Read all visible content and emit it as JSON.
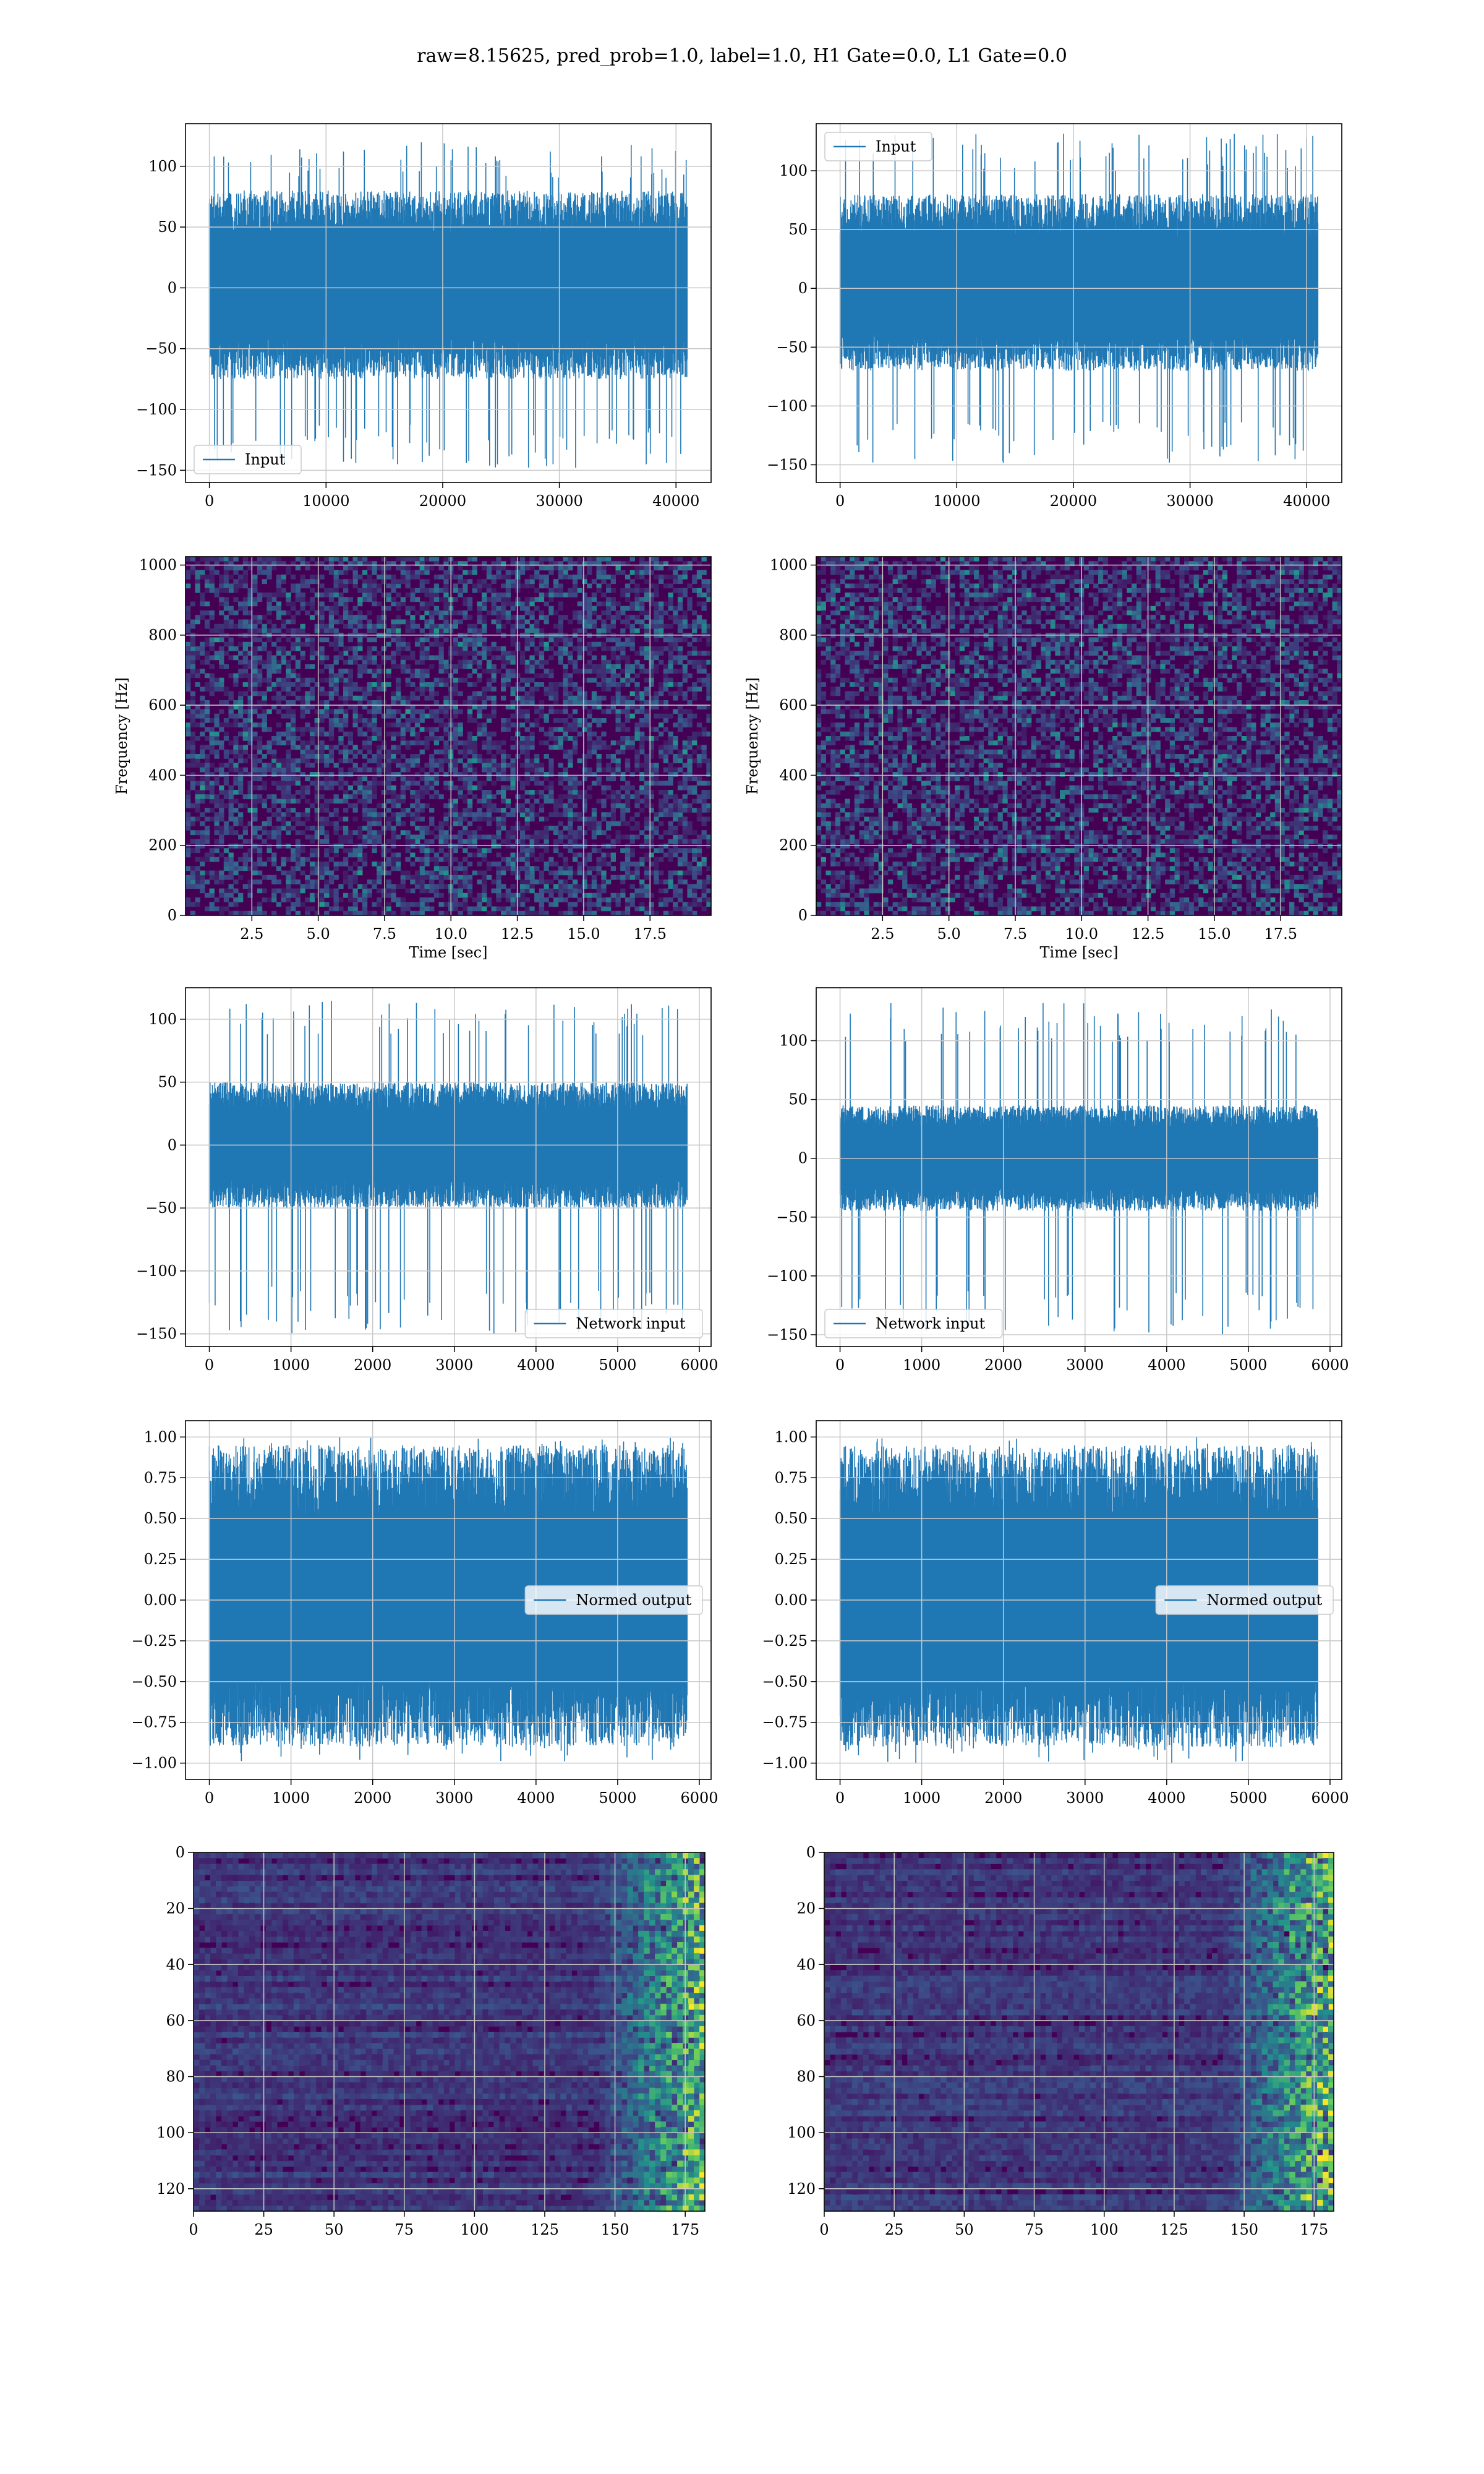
{
  "figure": {
    "title": "raw=8.15625, pred_prob=1.0, label=1.0, H1 Gate=0.0, L1 Gate=0.0"
  },
  "colors": {
    "series": "#1f77b4",
    "grid": "#c8c8c8",
    "viridis_low": "#440154",
    "viridis_mid": "#21918c",
    "viridis_high": "#fde725"
  },
  "chart_data": [
    {
      "id": "h1-input",
      "type": "line",
      "legend": "Input",
      "legend_position": "lower-left",
      "xlim": [
        -2048,
        43008
      ],
      "ylim": [
        -160,
        135
      ],
      "xticks": [
        0,
        10000,
        20000,
        30000,
        40000
      ],
      "yticks": [
        -150,
        -100,
        -50,
        0,
        50,
        100
      ],
      "x_range": [
        0,
        40959
      ],
      "envelope": [
        -75,
        80
      ],
      "peaks": [
        -150,
        120
      ],
      "grid": true,
      "xlabel": "",
      "ylabel": ""
    },
    {
      "id": "l1-input",
      "type": "line",
      "legend": "Input",
      "legend_position": "upper-left",
      "xlim": [
        -2048,
        43008
      ],
      "ylim": [
        -165,
        140
      ],
      "xticks": [
        0,
        10000,
        20000,
        30000,
        40000
      ],
      "yticks": [
        -150,
        -100,
        -50,
        0,
        50,
        100
      ],
      "x_range": [
        0,
        40959
      ],
      "envelope": [
        -70,
        80
      ],
      "peaks": [
        -150,
        132
      ],
      "grid": true,
      "xlabel": "",
      "ylabel": ""
    },
    {
      "id": "h1-spectrogram",
      "type": "heatmap",
      "xlim": [
        0,
        19.8
      ],
      "ylim": [
        0,
        1024
      ],
      "xticks": [
        2.5,
        5.0,
        7.5,
        10.0,
        12.5,
        15.0,
        17.5
      ],
      "xtick_labels": [
        "2.5",
        "5.0",
        "7.5",
        "10.0",
        "12.5",
        "15.0",
        "17.5"
      ],
      "yticks": [
        0,
        200,
        400,
        600,
        800,
        1000
      ],
      "xlabel": "Time [sec]",
      "ylabel": "Frequency [Hz]",
      "grid": true,
      "colormap": "viridis"
    },
    {
      "id": "l1-spectrogram",
      "type": "heatmap",
      "xlim": [
        0,
        19.8
      ],
      "ylim": [
        0,
        1024
      ],
      "xticks": [
        2.5,
        5.0,
        7.5,
        10.0,
        12.5,
        15.0,
        17.5
      ],
      "xtick_labels": [
        "2.5",
        "5.0",
        "7.5",
        "10.0",
        "12.5",
        "15.0",
        "17.5"
      ],
      "yticks": [
        0,
        200,
        400,
        600,
        800,
        1000
      ],
      "xlabel": "Time [sec]",
      "ylabel": "Frequency [Hz]",
      "grid": true,
      "colormap": "viridis"
    },
    {
      "id": "h1-network-input",
      "type": "line",
      "legend": "Network input",
      "legend_position": "lower-right",
      "xlim": [
        -292,
        6144
      ],
      "ylim": [
        -160,
        125
      ],
      "xticks": [
        0,
        1000,
        2000,
        3000,
        4000,
        5000,
        6000
      ],
      "yticks": [
        -150,
        -100,
        -50,
        0,
        50,
        100
      ],
      "x_range": [
        0,
        5850
      ],
      "envelope": [
        -50,
        50
      ],
      "peaks": [
        -150,
        115
      ],
      "grid": true,
      "xlabel": "",
      "ylabel": ""
    },
    {
      "id": "l1-network-input",
      "type": "line",
      "legend": "Network input",
      "legend_position": "lower-left",
      "xlim": [
        -292,
        6144
      ],
      "ylim": [
        -160,
        145
      ],
      "xticks": [
        0,
        1000,
        2000,
        3000,
        4000,
        5000,
        6000
      ],
      "yticks": [
        -150,
        -100,
        -50,
        0,
        50,
        100
      ],
      "x_range": [
        0,
        5850
      ],
      "envelope": [
        -45,
        45
      ],
      "peaks": [
        -150,
        132
      ],
      "grid": true,
      "xlabel": "",
      "ylabel": ""
    },
    {
      "id": "h1-normed-output",
      "type": "line",
      "legend": "Normed output",
      "legend_position": "center-right",
      "xlim": [
        -292,
        6144
      ],
      "ylim": [
        -1.1,
        1.1
      ],
      "xticks": [
        0,
        1000,
        2000,
        3000,
        4000,
        5000,
        6000
      ],
      "yticks": [
        -1.0,
        -0.75,
        -0.5,
        -0.25,
        0.0,
        0.25,
        0.5,
        0.75,
        1.0
      ],
      "ytick_labels": [
        "−1.00",
        "−0.75",
        "−0.50",
        "−0.25",
        "0.00",
        "0.25",
        "0.50",
        "0.75",
        "1.00"
      ],
      "x_range": [
        0,
        5850
      ],
      "envelope": [
        -0.9,
        0.95
      ],
      "peaks": [
        -1.0,
        1.0
      ],
      "grid": true,
      "xlabel": "",
      "ylabel": ""
    },
    {
      "id": "l1-normed-output",
      "type": "line",
      "legend": "Normed output",
      "legend_position": "center-right",
      "xlim": [
        -292,
        6144
      ],
      "ylim": [
        -1.1,
        1.1
      ],
      "xticks": [
        0,
        1000,
        2000,
        3000,
        4000,
        5000,
        6000
      ],
      "yticks": [
        -1.0,
        -0.75,
        -0.5,
        -0.25,
        0.0,
        0.25,
        0.5,
        0.75,
        1.0
      ],
      "ytick_labels": [
        "−1.00",
        "−0.75",
        "−0.50",
        "−0.25",
        "0.00",
        "0.25",
        "0.50",
        "0.75",
        "1.00"
      ],
      "x_range": [
        0,
        5850
      ],
      "envelope": [
        -0.9,
        0.95
      ],
      "peaks": [
        -1.0,
        1.0
      ],
      "grid": true,
      "xlabel": "",
      "ylabel": ""
    },
    {
      "id": "h1-feature-map",
      "type": "heatmap",
      "xlim": [
        0,
        182
      ],
      "ylim": [
        128,
        0
      ],
      "xticks": [
        0,
        25,
        50,
        75,
        100,
        125,
        150,
        175
      ],
      "yticks": [
        0,
        20,
        40,
        60,
        80,
        100,
        120
      ],
      "xlabel": "",
      "ylabel": "",
      "grid": true,
      "colormap": "viridis"
    },
    {
      "id": "l1-feature-map",
      "type": "heatmap",
      "xlim": [
        0,
        182
      ],
      "ylim": [
        128,
        0
      ],
      "xticks": [
        0,
        25,
        50,
        75,
        100,
        125,
        150,
        175
      ],
      "yticks": [
        0,
        20,
        40,
        60,
        80,
        100,
        120
      ],
      "xlabel": "",
      "ylabel": "",
      "grid": true,
      "colormap": "viridis"
    }
  ]
}
